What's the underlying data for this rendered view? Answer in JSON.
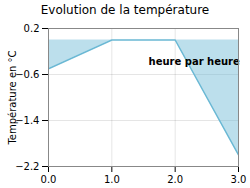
{
  "chart_data": {
    "type": "line",
    "title": "Evolution de la température",
    "ylabel": "Température en °C",
    "x": [
      0,
      1,
      2,
      3
    ],
    "values": [
      -0.5,
      0.0,
      0.0,
      -2.0
    ],
    "color": "#6ab8d4",
    "xlim": [
      0,
      3
    ],
    "ylim": [
      -2.2,
      0.2
    ],
    "xticks": [
      0,
      1,
      2,
      3
    ],
    "yticks": [
      0.2,
      -0.6,
      -1.4,
      -2.2
    ],
    "grid": true,
    "annotations": [
      {
        "text": "heure par heure",
        "x": 2.3,
        "y": -0.38
      }
    ]
  }
}
